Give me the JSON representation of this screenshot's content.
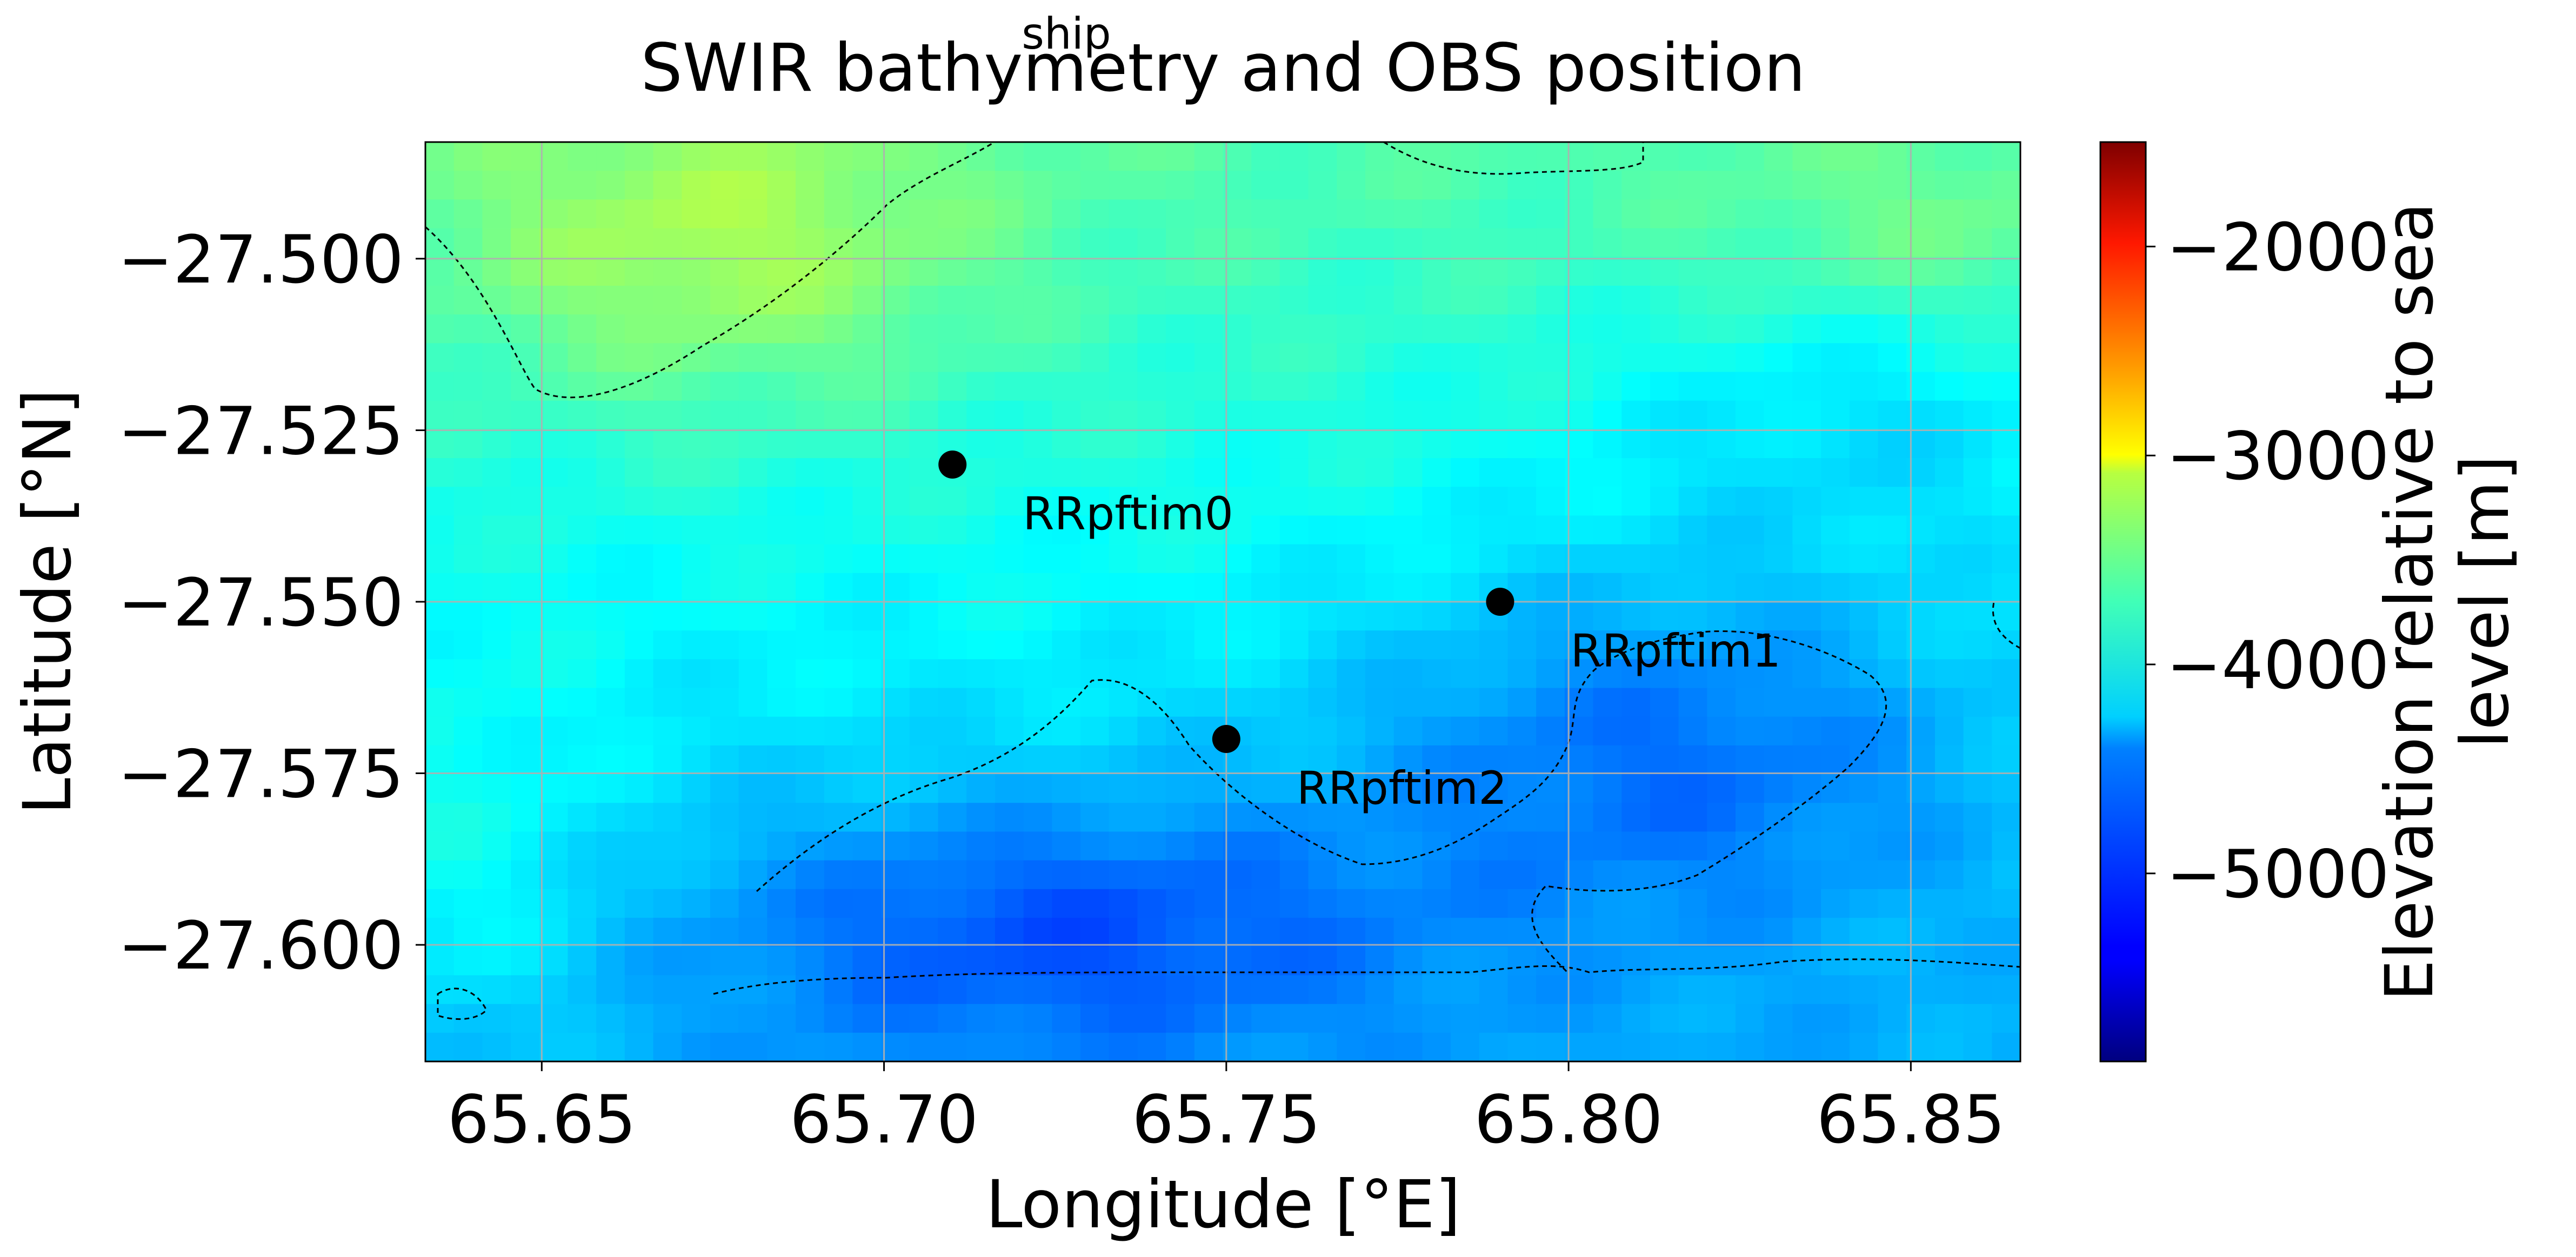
{
  "figure": {
    "superscript": "ship",
    "title": "SWIR bathymetry and OBS position"
  },
  "chart_data": {
    "type": "heatmap",
    "title": "SWIR bathymetry and OBS position",
    "xlabel": "Longitude [°E]",
    "ylabel": "Latitude [°N]",
    "xlim": [
      65.633,
      65.866
    ],
    "ylim": [
      -27.617,
      -27.483
    ],
    "xticks": [
      65.65,
      65.7,
      65.75,
      65.8,
      65.85
    ],
    "xtick_labels": [
      "65.65",
      "65.70",
      "65.75",
      "65.80",
      "65.85"
    ],
    "yticks": [
      -27.5,
      -27.525,
      -27.55,
      -27.575,
      -27.6
    ],
    "ytick_labels": [
      "−27.500",
      "−27.525",
      "−27.550",
      "−27.575",
      "−27.600"
    ],
    "grid": true,
    "colormap": "jet",
    "colorbar": {
      "label": "Elevation relative to sea level [m]",
      "label_lines": [
        "Elevation relative to sea",
        "level [m]"
      ],
      "range": [
        -5900,
        -1500
      ],
      "ticks": [
        -2000,
        -3000,
        -4000,
        -5000
      ],
      "tick_labels": [
        "−2000",
        "−3000",
        "−4000",
        "−5000"
      ]
    },
    "stations": [
      {
        "name": "RRpftim0",
        "lon": 65.71,
        "lat": -27.53
      },
      {
        "name": "RRpftim1",
        "lon": 65.79,
        "lat": -27.55
      },
      {
        "name": "RRpftim2",
        "lon": 65.75,
        "lat": -27.57
      }
    ],
    "marker_color": "#000000"
  }
}
